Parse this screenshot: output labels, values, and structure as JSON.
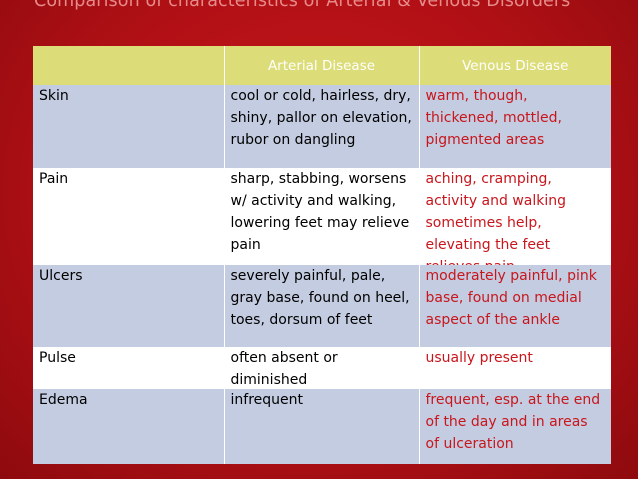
{
  "slide": {
    "title": "Comparison of characteristics of Arterial & Venous Disorders"
  },
  "table": {
    "headers": [
      "",
      "Arterial Disease",
      "Venous Disease"
    ],
    "rows": [
      {
        "label": "Skin",
        "arterial": "cool or cold, hairless, dry, shiny, pallor on elevation, rubor on dangling",
        "venous": "warm, though, thickened, mottled, pigmented areas"
      },
      {
        "label": "Pain",
        "arterial": "sharp, stabbing, worsens w/ activity and walking, lowering feet may relieve pain",
        "venous": "aching, cramping, activity and walking sometimes help, elevating the feet relieves pain"
      },
      {
        "label": "Ulcers",
        "arterial": "severely painful, pale, gray base, found on heel, toes, dorsum of feet",
        "venous": "moderately painful, pink base, found on medial aspect of the ankle"
      },
      {
        "label": "Pulse",
        "arterial": "often absent or diminished",
        "venous": "usually present"
      },
      {
        "label": "Edema",
        "arterial": "infrequent",
        "venous": "frequent, esp. at the end of the day and in areas of ulceration"
      }
    ]
  }
}
